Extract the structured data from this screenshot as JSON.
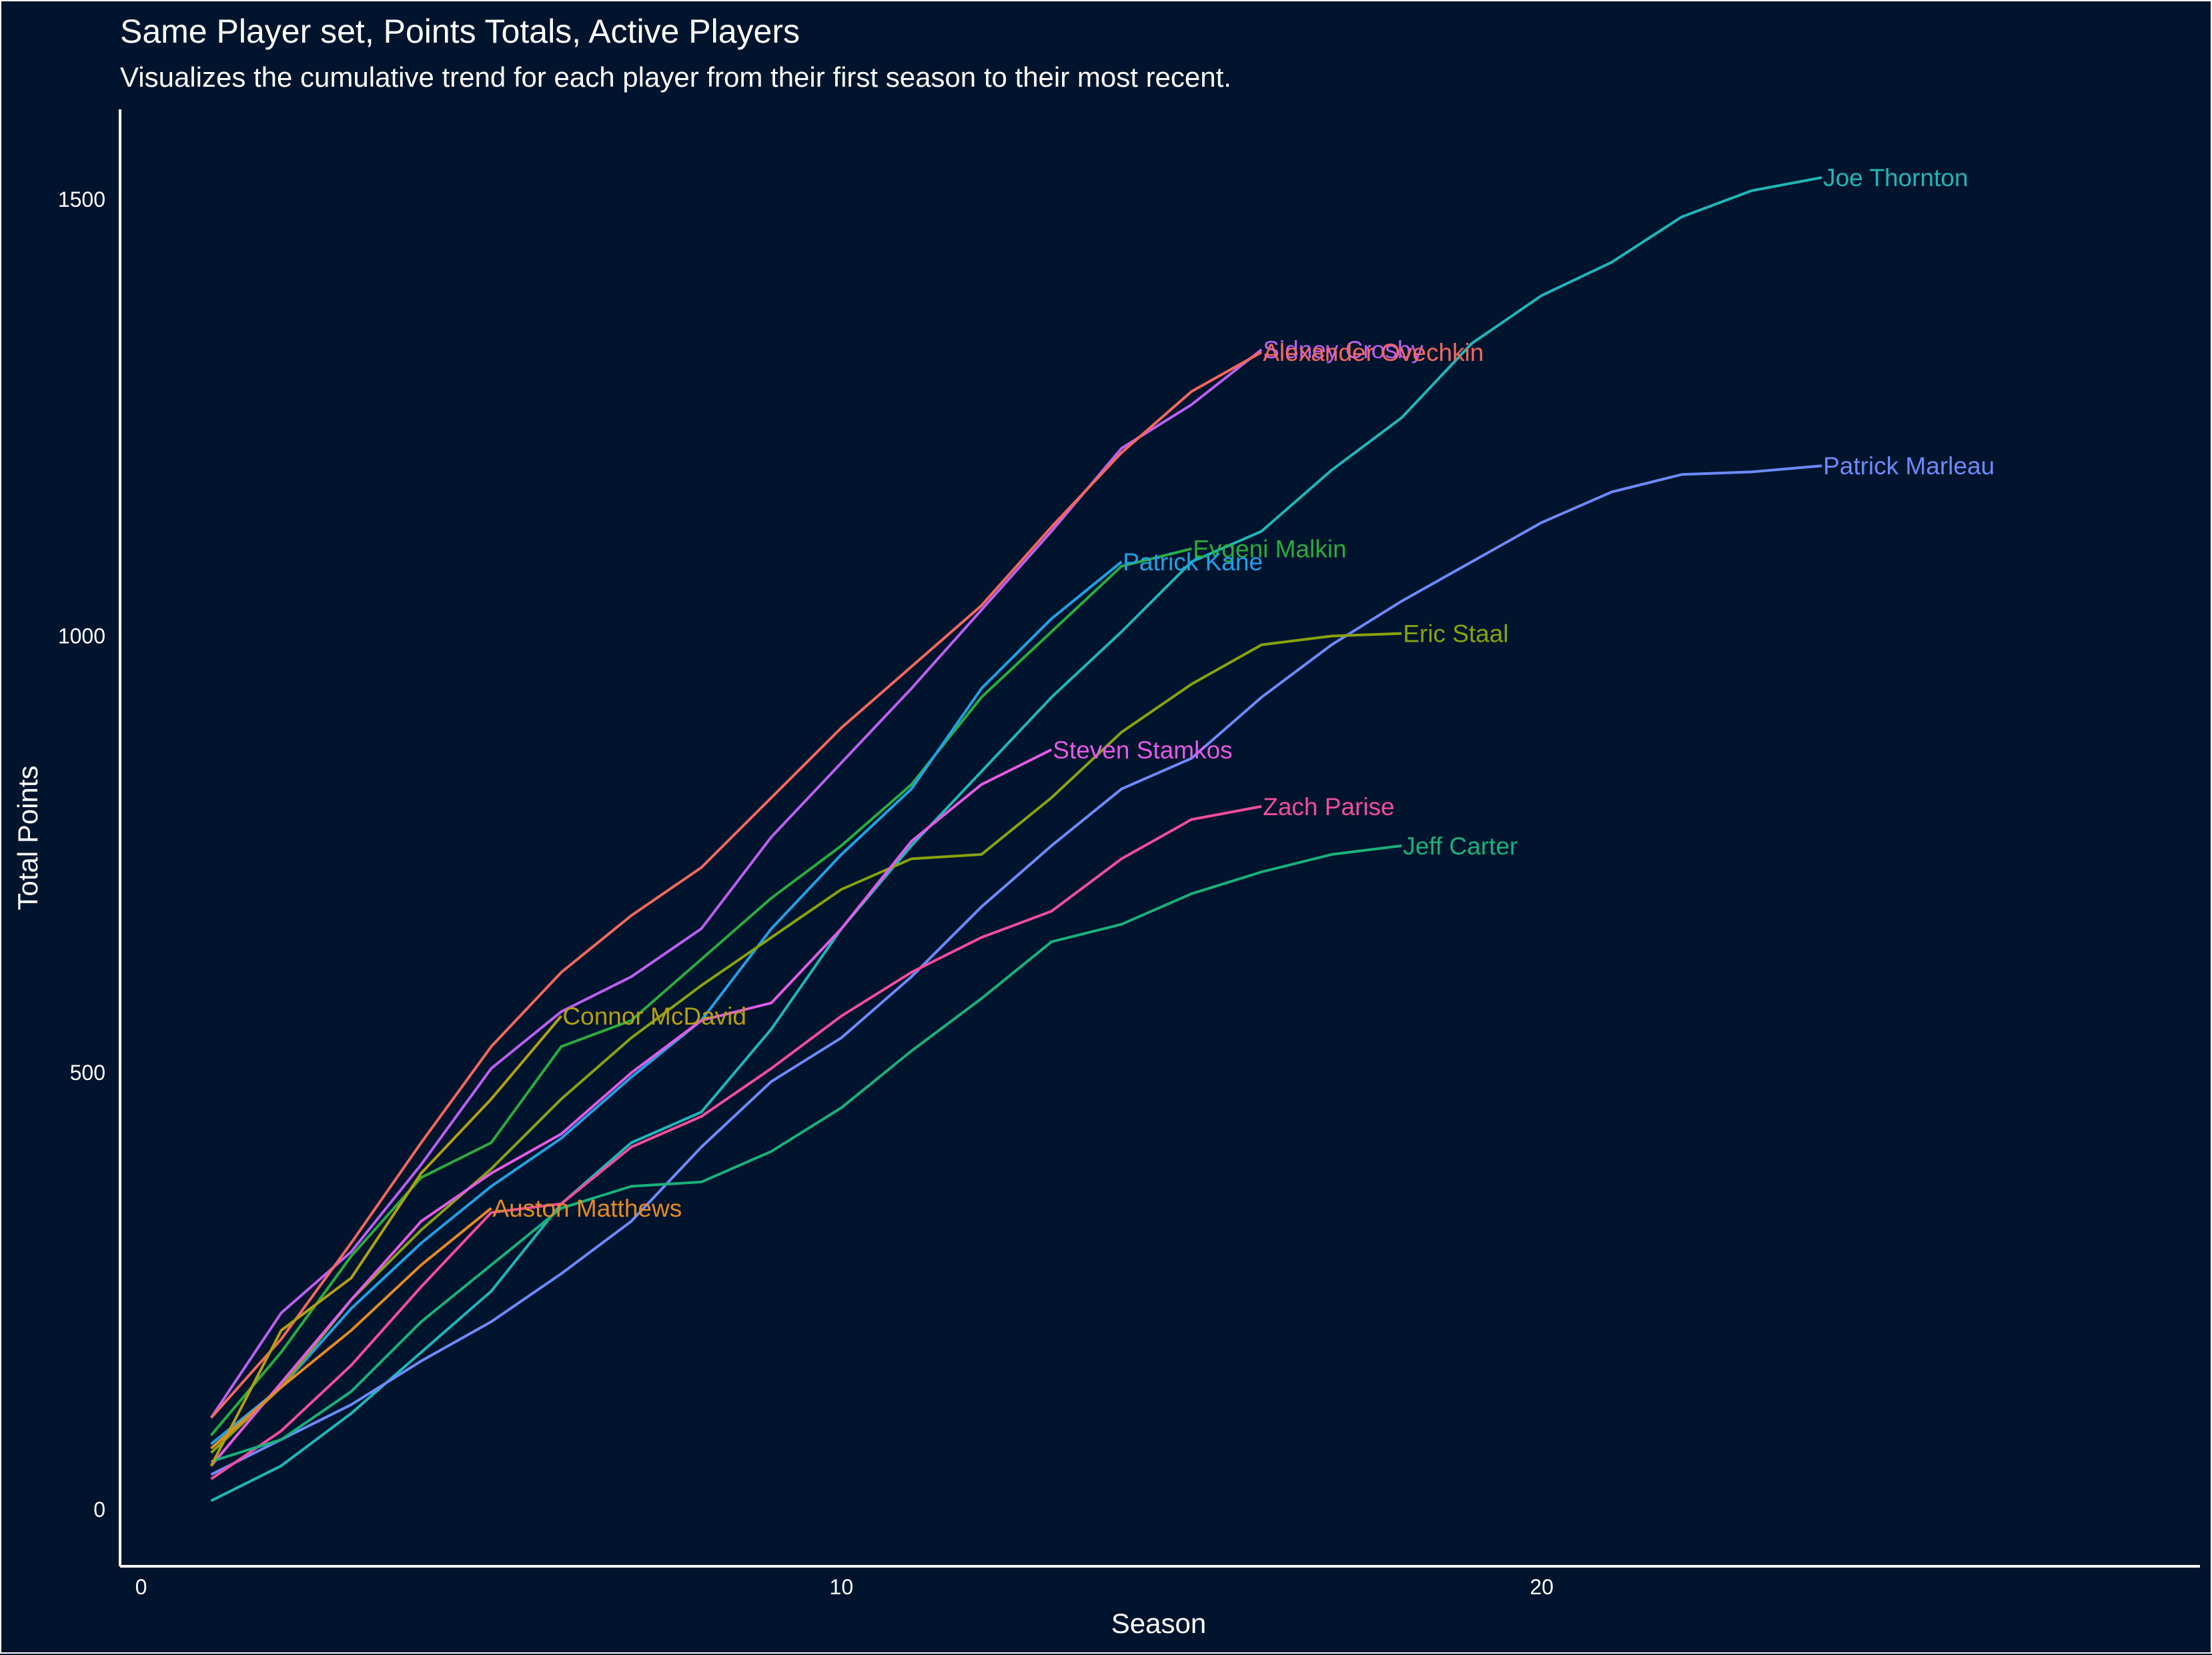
{
  "chart_data": {
    "type": "line",
    "title": "Same Player set, Points Totals, Active Players",
    "subtitle": "Visualizes the cumulative trend for each player from their first season to their most recent.",
    "xlabel": "Season",
    "ylabel": "Total Points",
    "xlim": [
      -0.3,
      29.4
    ],
    "ylim": [
      -65,
      1603
    ],
    "xticks": [
      0,
      10,
      20
    ],
    "yticks": [
      0,
      500,
      1000,
      1500
    ],
    "grid": false,
    "legend": "none (direct labels at line ends)",
    "series": [
      {
        "name": "Joe Thornton",
        "color": "#1fb7b7",
        "points": [
          [
            1,
            10
          ],
          [
            2,
            50
          ],
          [
            3,
            110
          ],
          [
            4,
            180
          ],
          [
            5,
            250
          ],
          [
            6,
            350
          ],
          [
            7,
            420
          ],
          [
            8,
            455
          ],
          [
            9,
            550
          ],
          [
            10,
            665
          ],
          [
            11,
            760
          ],
          [
            12,
            845
          ],
          [
            13,
            930
          ],
          [
            14,
            1005
          ],
          [
            15,
            1085
          ],
          [
            16,
            1120
          ],
          [
            17,
            1190
          ],
          [
            18,
            1250
          ],
          [
            19,
            1335
          ],
          [
            20,
            1390
          ],
          [
            21,
            1428
          ],
          [
            22,
            1480
          ],
          [
            23,
            1510
          ],
          [
            24,
            1525
          ]
        ]
      },
      {
        "name": "Patrick Marleau",
        "color": "#6c8bff",
        "points": [
          [
            1,
            40
          ],
          [
            2,
            80
          ],
          [
            3,
            120
          ],
          [
            4,
            170
          ],
          [
            5,
            215
          ],
          [
            6,
            270
          ],
          [
            7,
            330
          ],
          [
            8,
            415
          ],
          [
            9,
            490
          ],
          [
            10,
            540
          ],
          [
            11,
            610
          ],
          [
            12,
            690
          ],
          [
            13,
            760
          ],
          [
            14,
            825
          ],
          [
            15,
            860
          ],
          [
            16,
            930
          ],
          [
            17,
            990
          ],
          [
            18,
            1040
          ],
          [
            19,
            1085
          ],
          [
            20,
            1130
          ],
          [
            21,
            1165
          ],
          [
            22,
            1185
          ],
          [
            23,
            1188
          ],
          [
            24,
            1195
          ]
        ]
      },
      {
        "name": "Sidney Crosby",
        "color": "#bb5ff0",
        "points": [
          [
            1,
            105
          ],
          [
            2,
            225
          ],
          [
            3,
            295
          ],
          [
            4,
            395
          ],
          [
            5,
            505
          ],
          [
            6,
            570
          ],
          [
            7,
            610
          ],
          [
            8,
            665
          ],
          [
            9,
            770
          ],
          [
            10,
            855
          ],
          [
            11,
            940
          ],
          [
            12,
            1030
          ],
          [
            13,
            1120
          ],
          [
            14,
            1215
          ],
          [
            15,
            1265
          ],
          [
            16,
            1328
          ]
        ]
      },
      {
        "name": "Alexander Ovechkin",
        "color": "#f2685d",
        "points": [
          [
            1,
            105
          ],
          [
            2,
            195
          ],
          [
            3,
            305
          ],
          [
            4,
            420
          ],
          [
            5,
            530
          ],
          [
            6,
            615
          ],
          [
            7,
            680
          ],
          [
            8,
            735
          ],
          [
            9,
            815
          ],
          [
            10,
            895
          ],
          [
            11,
            965
          ],
          [
            12,
            1035
          ],
          [
            13,
            1125
          ],
          [
            14,
            1210
          ],
          [
            15,
            1280
          ],
          [
            16,
            1325
          ]
        ]
      },
      {
        "name": "Evgeni Malkin",
        "color": "#2aac3f",
        "points": [
          [
            1,
            85
          ],
          [
            2,
            180
          ],
          [
            3,
            290
          ],
          [
            4,
            380
          ],
          [
            5,
            420
          ],
          [
            6,
            530
          ],
          [
            7,
            560
          ],
          [
            8,
            630
          ],
          [
            9,
            700
          ],
          [
            10,
            760
          ],
          [
            11,
            830
          ],
          [
            12,
            930
          ],
          [
            13,
            1005
          ],
          [
            14,
            1080
          ],
          [
            15,
            1100
          ]
        ]
      },
      {
        "name": "Patrick Kane",
        "color": "#21a1e6",
        "points": [
          [
            1,
            75
          ],
          [
            2,
            140
          ],
          [
            3,
            230
          ],
          [
            4,
            305
          ],
          [
            5,
            370
          ],
          [
            6,
            425
          ],
          [
            7,
            495
          ],
          [
            8,
            560
          ],
          [
            9,
            665
          ],
          [
            10,
            750
          ],
          [
            11,
            825
          ],
          [
            12,
            940
          ],
          [
            13,
            1020
          ],
          [
            14,
            1085
          ]
        ]
      },
      {
        "name": "Eric Staal",
        "color": "#88a30b",
        "points": [
          [
            1,
            65
          ],
          [
            2,
            140
          ],
          [
            3,
            240
          ],
          [
            4,
            320
          ],
          [
            5,
            390
          ],
          [
            6,
            470
          ],
          [
            7,
            540
          ],
          [
            8,
            600
          ],
          [
            9,
            655
          ],
          [
            10,
            710
          ],
          [
            11,
            745
          ],
          [
            12,
            750
          ],
          [
            13,
            815
          ],
          [
            14,
            890
          ],
          [
            15,
            945
          ],
          [
            16,
            990
          ],
          [
            17,
            1000
          ],
          [
            18,
            1003
          ]
        ]
      },
      {
        "name": "Steven Stamkos",
        "color": "#e25be6",
        "points": [
          [
            1,
            50
          ],
          [
            2,
            145
          ],
          [
            3,
            240
          ],
          [
            4,
            330
          ],
          [
            5,
            385
          ],
          [
            6,
            430
          ],
          [
            7,
            500
          ],
          [
            8,
            560
          ],
          [
            9,
            580
          ],
          [
            10,
            665
          ],
          [
            11,
            765
          ],
          [
            12,
            830
          ],
          [
            13,
            870
          ]
        ]
      },
      {
        "name": "Zach Parise",
        "color": "#f24d9c",
        "points": [
          [
            1,
            35
          ],
          [
            2,
            90
          ],
          [
            3,
            165
          ],
          [
            4,
            255
          ],
          [
            5,
            340
          ],
          [
            6,
            350
          ],
          [
            7,
            415
          ],
          [
            8,
            450
          ],
          [
            9,
            505
          ],
          [
            10,
            565
          ],
          [
            11,
            615
          ],
          [
            12,
            655
          ],
          [
            13,
            685
          ],
          [
            14,
            745
          ],
          [
            15,
            790
          ],
          [
            16,
            805
          ]
        ]
      },
      {
        "name": "Jeff Carter",
        "color": "#18b17a",
        "points": [
          [
            1,
            55
          ],
          [
            2,
            80
          ],
          [
            3,
            135
          ],
          [
            4,
            215
          ],
          [
            5,
            280
          ],
          [
            6,
            345
          ],
          [
            7,
            370
          ],
          [
            8,
            375
          ],
          [
            9,
            410
          ],
          [
            10,
            460
          ],
          [
            11,
            525
          ],
          [
            12,
            585
          ],
          [
            13,
            650
          ],
          [
            14,
            670
          ],
          [
            15,
            705
          ],
          [
            16,
            730
          ],
          [
            17,
            750
          ],
          [
            18,
            760
          ]
        ]
      },
      {
        "name": "Connor McDavid",
        "color": "#b4a00d",
        "points": [
          [
            1,
            50
          ],
          [
            2,
            205
          ],
          [
            3,
            265
          ],
          [
            4,
            385
          ],
          [
            5,
            470
          ],
          [
            6,
            565
          ]
        ]
      },
      {
        "name": "Auston Matthews",
        "color": "#e58a22",
        "points": [
          [
            1,
            70
          ],
          [
            2,
            140
          ],
          [
            3,
            205
          ],
          [
            4,
            280
          ],
          [
            5,
            345
          ]
        ]
      }
    ]
  }
}
